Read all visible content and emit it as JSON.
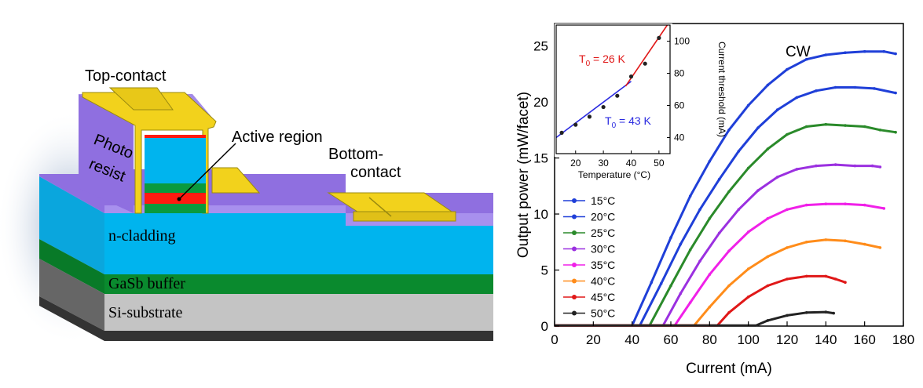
{
  "diagram": {
    "labels": {
      "top_contact": "Top-contact",
      "photo": "Photo",
      "resist": "resist",
      "active_region": "Active region",
      "bottom_1": "Bottom-",
      "bottom_2": "contact",
      "n_cladding": "n-cladding",
      "gasb_buffer": "GaSb buffer",
      "si_substrate": "Si-substrate"
    },
    "colors": {
      "photoresist": "#8f6fe0",
      "contact": "#f2d21c",
      "cladding": "#00b4ee",
      "active_green": "#0a9a3e",
      "active_red": "#ff1a10",
      "buffer": "#0a8a2e",
      "substrate": "#c4c4c4"
    }
  },
  "chart_data": [
    {
      "type": "line",
      "xlabel": "Current (mA)",
      "ylabel": "Output power (mW/facet)",
      "xlim": [
        0,
        180
      ],
      "ylim": [
        0,
        27
      ],
      "xticks": [
        0,
        20,
        40,
        60,
        80,
        100,
        120,
        140,
        160,
        180
      ],
      "yticks": [
        0,
        5,
        10,
        15,
        20,
        25
      ],
      "annotation": "CW",
      "legend_position": "lower-left",
      "series": [
        {
          "name": "15°C",
          "color": "#1f3fd8",
          "points": [
            [
              0,
              0.05
            ],
            [
              40,
              0.05
            ],
            [
              50,
              3.9
            ],
            [
              60,
              7.9
            ],
            [
              70,
              11.6
            ],
            [
              80,
              14.7
            ],
            [
              90,
              17.5
            ],
            [
              100,
              19.7
            ],
            [
              110,
              21.5
            ],
            [
              120,
              22.9
            ],
            [
              130,
              23.8
            ],
            [
              140,
              24.2
            ],
            [
              150,
              24.4
            ],
            [
              160,
              24.5
            ],
            [
              170,
              24.5
            ],
            [
              176,
              24.3
            ]
          ]
        },
        {
          "name": "20°C",
          "color": "#1f3fd8",
          "points": [
            [
              0,
              0.05
            ],
            [
              44,
              0.05
            ],
            [
              55,
              3.8
            ],
            [
              65,
              7.3
            ],
            [
              75,
              10.4
            ],
            [
              85,
              13.1
            ],
            [
              95,
              15.6
            ],
            [
              105,
              17.7
            ],
            [
              115,
              19.3
            ],
            [
              125,
              20.4
            ],
            [
              135,
              21.0
            ],
            [
              145,
              21.3
            ],
            [
              155,
              21.3
            ],
            [
              165,
              21.2
            ],
            [
              176,
              20.8
            ]
          ]
        },
        {
          "name": "25°C",
          "color": "#2a8a2a",
          "points": [
            [
              0,
              0.05
            ],
            [
              49,
              0.05
            ],
            [
              60,
              3.6
            ],
            [
              70,
              6.8
            ],
            [
              80,
              9.6
            ],
            [
              90,
              12.0
            ],
            [
              100,
              14.1
            ],
            [
              110,
              15.8
            ],
            [
              120,
              17.1
            ],
            [
              130,
              17.8
            ],
            [
              140,
              18.0
            ],
            [
              150,
              17.9
            ],
            [
              160,
              17.8
            ],
            [
              168,
              17.5
            ],
            [
              176,
              17.3
            ]
          ]
        },
        {
          "name": "30°C",
          "color": "#9b30e0",
          "points": [
            [
              0,
              0.05
            ],
            [
              56,
              0.05
            ],
            [
              65,
              2.9
            ],
            [
              75,
              5.8
            ],
            [
              85,
              8.3
            ],
            [
              95,
              10.4
            ],
            [
              105,
              12.1
            ],
            [
              115,
              13.3
            ],
            [
              125,
              14.0
            ],
            [
              135,
              14.3
            ],
            [
              145,
              14.4
            ],
            [
              155,
              14.3
            ],
            [
              164,
              14.3
            ],
            [
              168,
              14.2
            ]
          ]
        },
        {
          "name": "35°C",
          "color": "#f020e8",
          "points": [
            [
              0,
              0.05
            ],
            [
              62,
              0.05
            ],
            [
              70,
              2.1
            ],
            [
              80,
              4.6
            ],
            [
              90,
              6.7
            ],
            [
              100,
              8.4
            ],
            [
              110,
              9.6
            ],
            [
              120,
              10.4
            ],
            [
              130,
              10.8
            ],
            [
              140,
              10.9
            ],
            [
              150,
              10.9
            ],
            [
              160,
              10.8
            ],
            [
              170,
              10.5
            ]
          ]
        },
        {
          "name": "40°C",
          "color": "#ff8c1a",
          "points": [
            [
              0,
              0.05
            ],
            [
              72,
              0.05
            ],
            [
              80,
              1.7
            ],
            [
              90,
              3.6
            ],
            [
              100,
              5.1
            ],
            [
              110,
              6.2
            ],
            [
              120,
              7.0
            ],
            [
              130,
              7.5
            ],
            [
              140,
              7.7
            ],
            [
              150,
              7.6
            ],
            [
              160,
              7.3
            ],
            [
              168,
              7.0
            ]
          ]
        },
        {
          "name": "45°C",
          "color": "#e01818",
          "points": [
            [
              0,
              0.05
            ],
            [
              84,
              0.05
            ],
            [
              90,
              1.2
            ],
            [
              100,
              2.6
            ],
            [
              110,
              3.6
            ],
            [
              120,
              4.2
            ],
            [
              130,
              4.45
            ],
            [
              140,
              4.45
            ],
            [
              145,
              4.2
            ],
            [
              150,
              3.9
            ]
          ]
        },
        {
          "name": "50°C",
          "color": "#222222",
          "points": [
            [
              0,
              0.05
            ],
            [
              104,
              0.05
            ],
            [
              110,
              0.5
            ],
            [
              120,
              0.95
            ],
            [
              130,
              1.2
            ],
            [
              140,
              1.25
            ],
            [
              144,
              1.15
            ]
          ]
        }
      ]
    },
    {
      "type": "line",
      "title": "",
      "xlabel": "Temperature (°C)",
      "ylabel": "Current threshold (mA)",
      "y_axis_side": "right",
      "xlim": [
        13,
        54
      ],
      "ylim": [
        30,
        110
      ],
      "xticks": [
        20,
        30,
        40,
        50
      ],
      "yticks": [
        40,
        60,
        80,
        100
      ],
      "annotations": [
        "T0 = 26 K",
        "T0 = 43 K"
      ],
      "series": [
        {
          "name": "",
          "type": "scatter",
          "color": "#222222",
          "x": [
            15,
            20,
            25,
            30,
            35,
            40,
            45,
            50
          ],
          "y": [
            43,
            48,
            53,
            59,
            66,
            78,
            86,
            102
          ]
        },
        {
          "name": "T0 = 43 K",
          "type": "line",
          "color": "#2a2ae0",
          "x": [
            13,
            40
          ],
          "y": [
            40,
            75
          ]
        },
        {
          "name": "T0 = 26 K",
          "type": "line",
          "color": "#e01818",
          "x": [
            38,
            53
          ],
          "y": [
            72,
            110
          ]
        }
      ]
    }
  ]
}
